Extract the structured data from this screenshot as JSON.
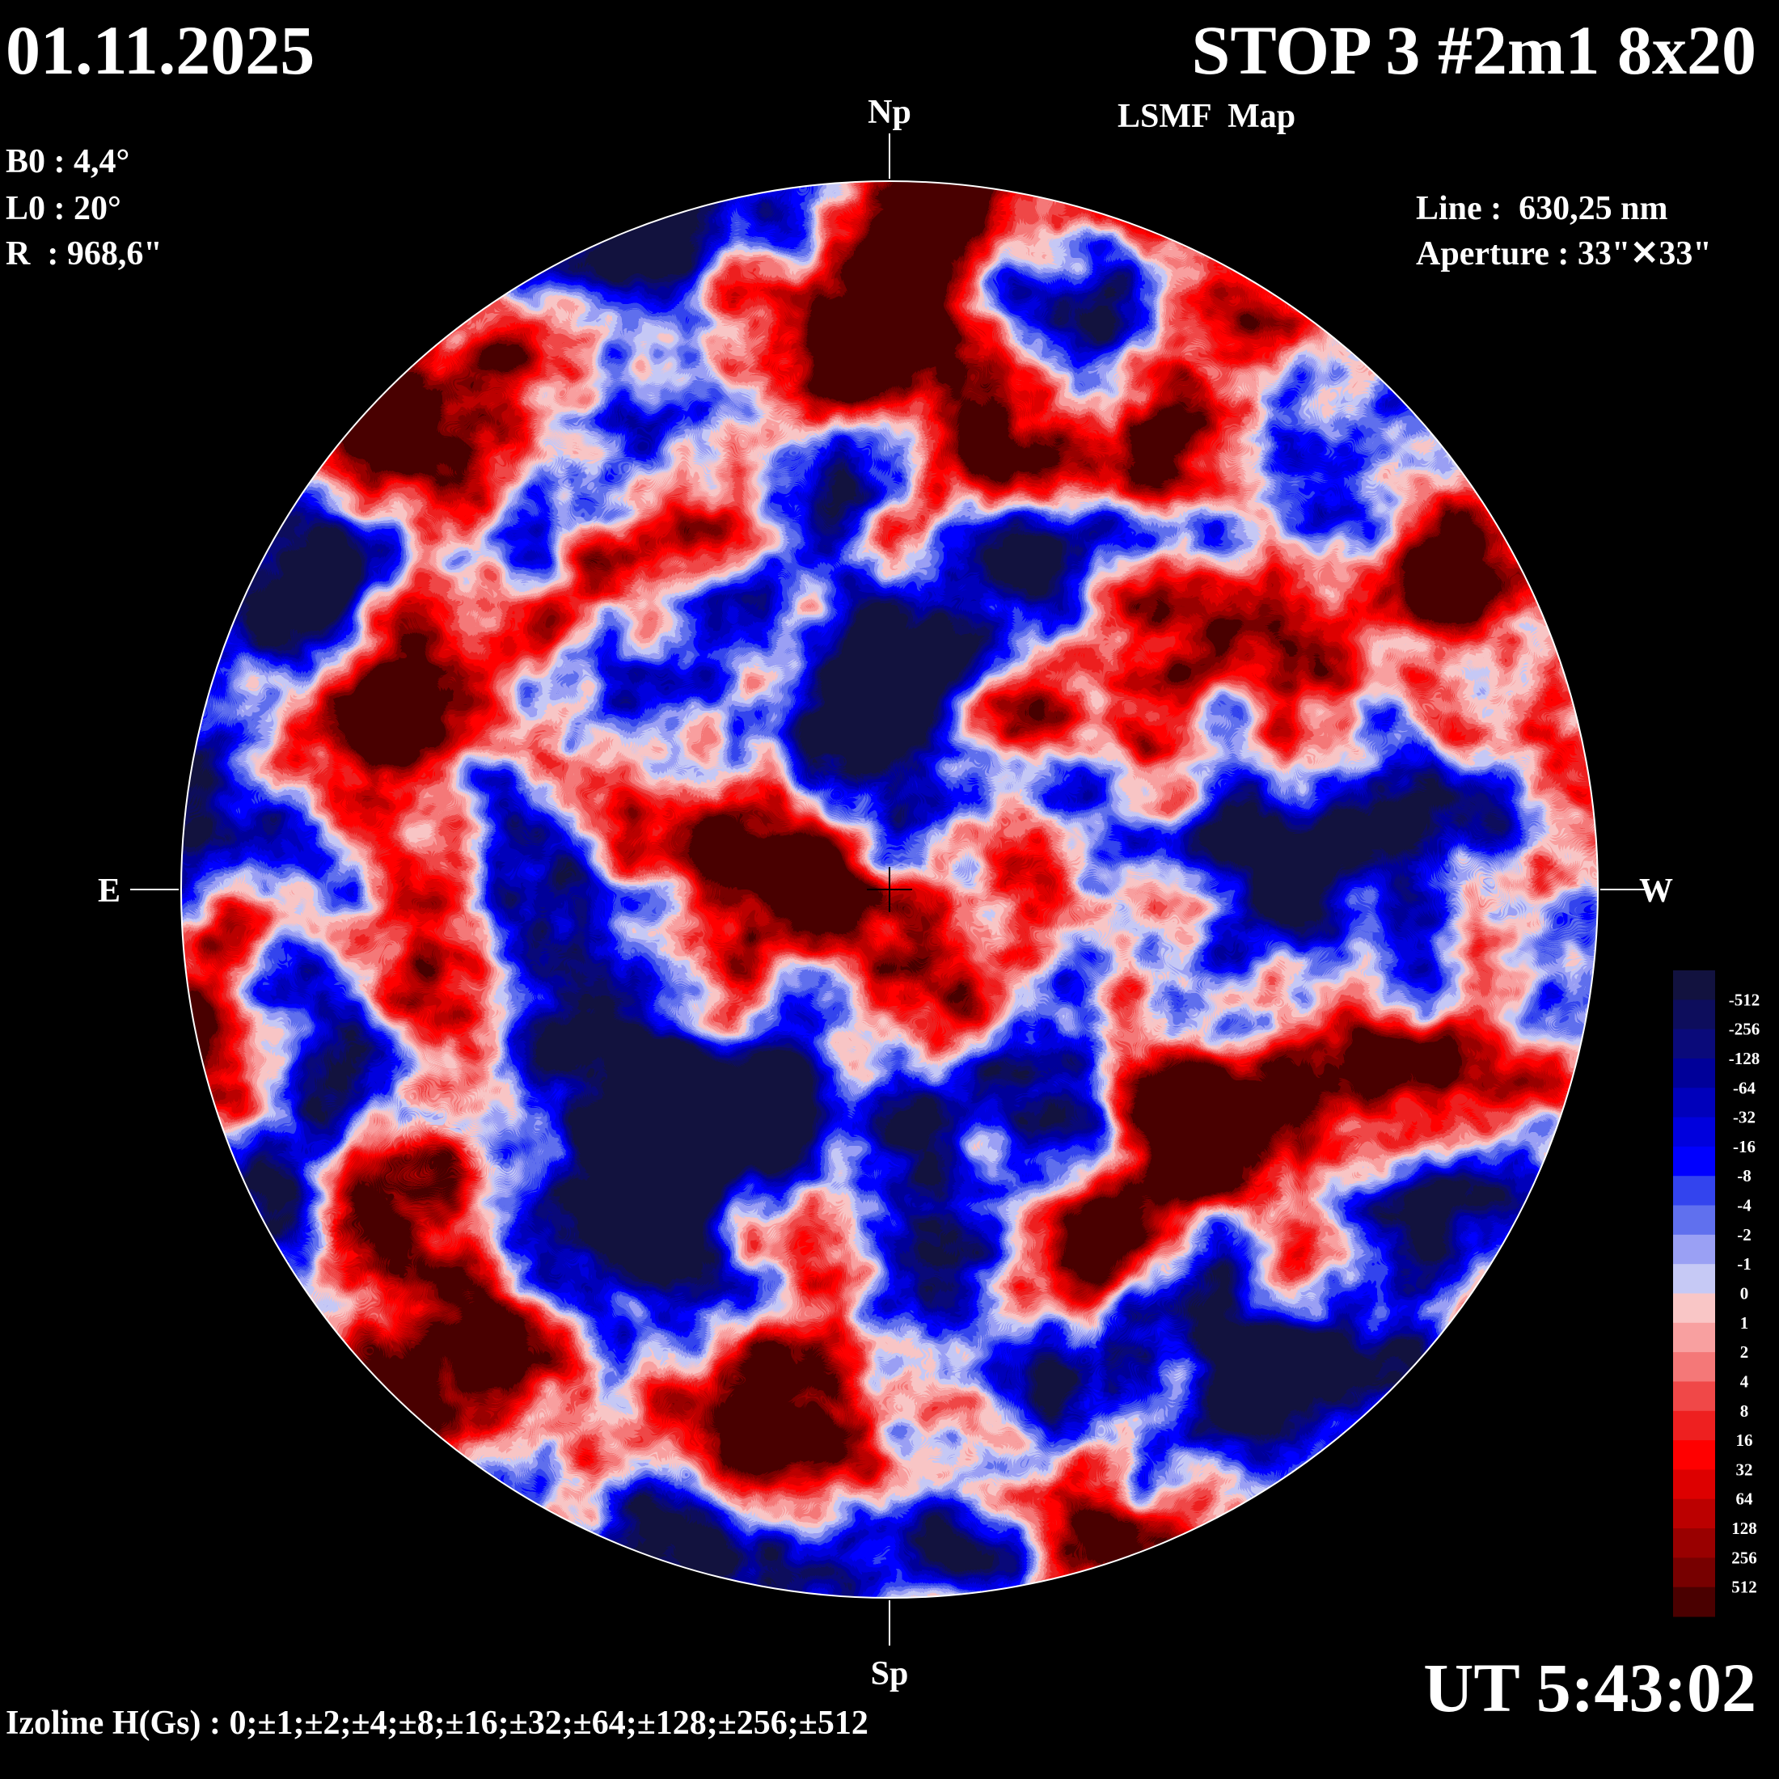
{
  "header": {
    "date": "01.11.2025",
    "title": "STOP 3 #2m1 8x20",
    "subtitle": "LSMF  Map",
    "time": "UT 5:43:02"
  },
  "parameters": [
    "B0 : 4,4°",
    "L0 : 20°",
    "R  : 968,6\""
  ],
  "instrument": [
    "Line :  630,25 nm",
    "Aperture : 33\"✕33\""
  ],
  "directions": {
    "north": "Np",
    "south": "Sp",
    "east": "E",
    "west": "W"
  },
  "footer": "Izoline H(Gs) : 0;±1;±2;±4;±8;±16;±32;±64;±128;±256;±512",
  "colorbar": {
    "levels": [
      -512,
      -256,
      -128,
      -64,
      -32,
      -16,
      -8,
      -4,
      -2,
      -1,
      0,
      1,
      2,
      4,
      8,
      16,
      32,
      64,
      128,
      256,
      512
    ],
    "colors": [
      "#12123f",
      "#0d0d5c",
      "#0a0a7a",
      "#000099",
      "#0000bb",
      "#0000dd",
      "#0000ff",
      "#3344ee",
      "#6070ee",
      "#9aa0f4",
      "#c6c9f5",
      "#f9c6c6",
      "#f8a0a0",
      "#f47878",
      "#f04848",
      "#ee2020",
      "#ff0000",
      "#dd0000",
      "#bb0000",
      "#990000",
      "#770000",
      "#4a0000"
    ]
  }
}
